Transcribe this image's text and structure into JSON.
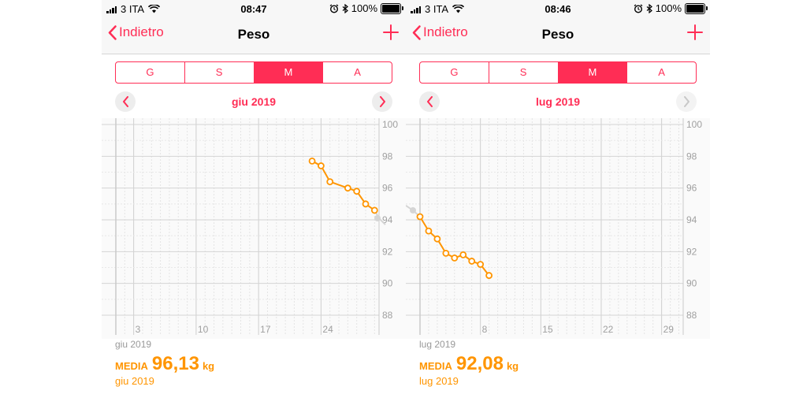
{
  "colors": {
    "accent": "#ff2d55",
    "series": "#ff9500",
    "grid": "#dcdcdc",
    "axis_text": "#a0a0a0"
  },
  "screens": [
    {
      "status": {
        "carrier": "3 ITA",
        "time": "08:47",
        "battery": "100%"
      },
      "nav": {
        "back_label": "Indietro",
        "title": "Peso"
      },
      "segments": [
        {
          "label": "G"
        },
        {
          "label": "S"
        },
        {
          "label": "M"
        },
        {
          "label": "A"
        }
      ],
      "active_segment": 2,
      "month_label": "giu 2019",
      "next_enabled": true,
      "footer": {
        "period": "giu 2019",
        "media_label": "MEDIA",
        "media_value": "96,13",
        "media_unit": "kg",
        "media_period": "giu 2019"
      },
      "chart_data": {
        "type": "line",
        "xlabel": "",
        "ylabel": "",
        "x_range": [
          1,
          30
        ],
        "ylim": [
          88,
          100
        ],
        "y_ticks": [
          100,
          98,
          96,
          94,
          92,
          90,
          88
        ],
        "x_ticks": [
          3,
          10,
          17,
          24
        ],
        "grid": true,
        "series": [
          {
            "x": [
              23,
              24,
              25,
              27,
              28,
              29,
              30
            ],
            "y": [
              97.7,
              97.4,
              96.4,
              96.0,
              95.8,
              95.0,
              94.6
            ]
          }
        ],
        "continuation_y": 94.1
      }
    },
    {
      "status": {
        "carrier": "3 ITA",
        "time": "08:46",
        "battery": "100%"
      },
      "nav": {
        "back_label": "Indietro",
        "title": "Peso"
      },
      "segments": [
        {
          "label": "G"
        },
        {
          "label": "S"
        },
        {
          "label": "M"
        },
        {
          "label": "A"
        }
      ],
      "active_segment": 2,
      "month_label": "lug 2019",
      "next_enabled": false,
      "footer": {
        "period": "lug 2019",
        "media_label": "MEDIA",
        "media_value": "92,08",
        "media_unit": "kg",
        "media_period": "lug 2019"
      },
      "chart_data": {
        "type": "line",
        "xlabel": "",
        "ylabel": "",
        "x_range": [
          1,
          31
        ],
        "ylim": [
          88,
          100
        ],
        "y_ticks": [
          100,
          98,
          96,
          94,
          92,
          90,
          88
        ],
        "x_ticks": [
          8,
          15,
          22,
          29
        ],
        "grid": true,
        "series": [
          {
            "x": [
              1,
              2,
              3,
              4,
              5,
              6,
              7,
              8,
              9
            ],
            "y": [
              94.2,
              93.3,
              92.8,
              91.9,
              91.6,
              91.8,
              91.4,
              91.2,
              90.5
            ]
          }
        ],
        "incoming_y": [
          94.9,
          94.6
        ]
      }
    }
  ]
}
